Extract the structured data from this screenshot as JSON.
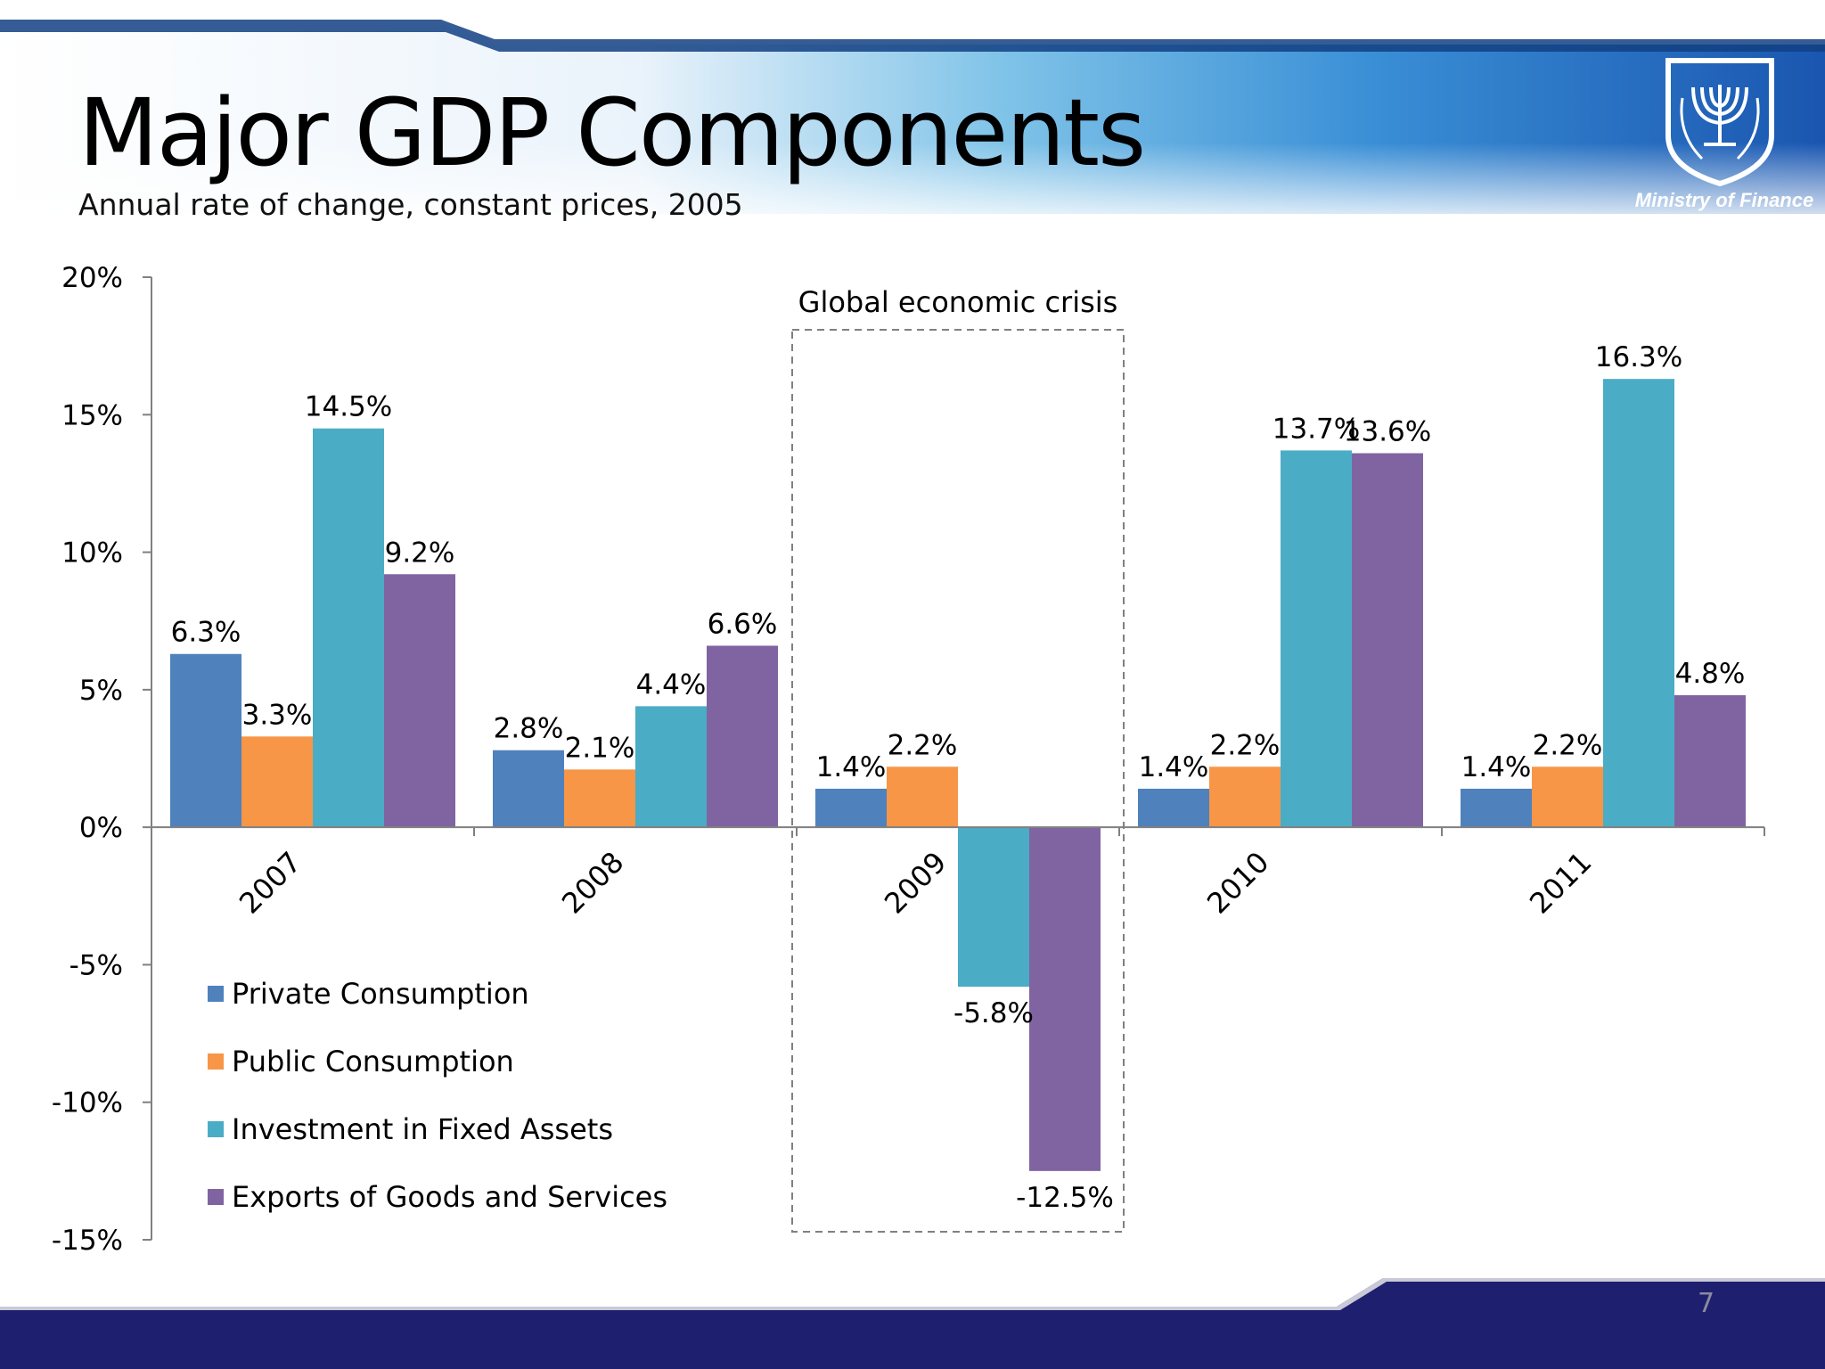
{
  "slide": {
    "title": "Major GDP Components",
    "subtitle": "Annual rate of change, constant prices, 2005",
    "logo_text": "Ministry of Finance",
    "page_number": "7"
  },
  "colors": {
    "private": "#4f81bd",
    "public": "#f79646",
    "investment": "#4bacc6",
    "exports": "#8064a2",
    "header_blue": "#1d5fa8",
    "footer_navy": "#1f1f6f"
  },
  "chart_data": {
    "type": "bar",
    "title": "",
    "xlabel": "",
    "ylabel": "",
    "categories": [
      "2007",
      "2008",
      "2009",
      "2010",
      "2011"
    ],
    "series": [
      {
        "name": "Private Consumption",
        "values": [
          6.3,
          2.8,
          1.4,
          1.4,
          1.4
        ],
        "labels": [
          "6.3%",
          "2.8%",
          "1.4%",
          "1.4%",
          "1.4%"
        ]
      },
      {
        "name": "Public Consumption",
        "values": [
          3.3,
          2.1,
          2.2,
          2.2,
          2.2
        ],
        "labels": [
          "3.3%",
          "2.1%",
          "2.2%",
          "2.2%",
          "2.2%"
        ]
      },
      {
        "name": "Investment in Fixed Assets",
        "values": [
          14.5,
          4.4,
          -5.8,
          13.7,
          16.3
        ],
        "labels": [
          "14.5%",
          "4.4%",
          "-5.8%",
          "13.7%",
          "16.3%"
        ]
      },
      {
        "name": "Exports of Goods and Services",
        "values": [
          9.2,
          6.6,
          -12.5,
          13.6,
          4.8
        ],
        "labels": [
          "9.2%",
          "6.6%",
          "-12.5%",
          "13.6%",
          "4.8%"
        ]
      }
    ],
    "ylim": [
      -15,
      20
    ],
    "yticks": [
      "20%",
      "15%",
      "10%",
      "5%",
      "0%",
      "-5%",
      "-10%",
      "-15%"
    ],
    "ytick_values": [
      20,
      15,
      10,
      5,
      0,
      -5,
      -10,
      -15
    ],
    "grid": false,
    "legend_position": "bottom-left",
    "annotation": {
      "text": "Global economic crisis",
      "category": "2009"
    }
  }
}
